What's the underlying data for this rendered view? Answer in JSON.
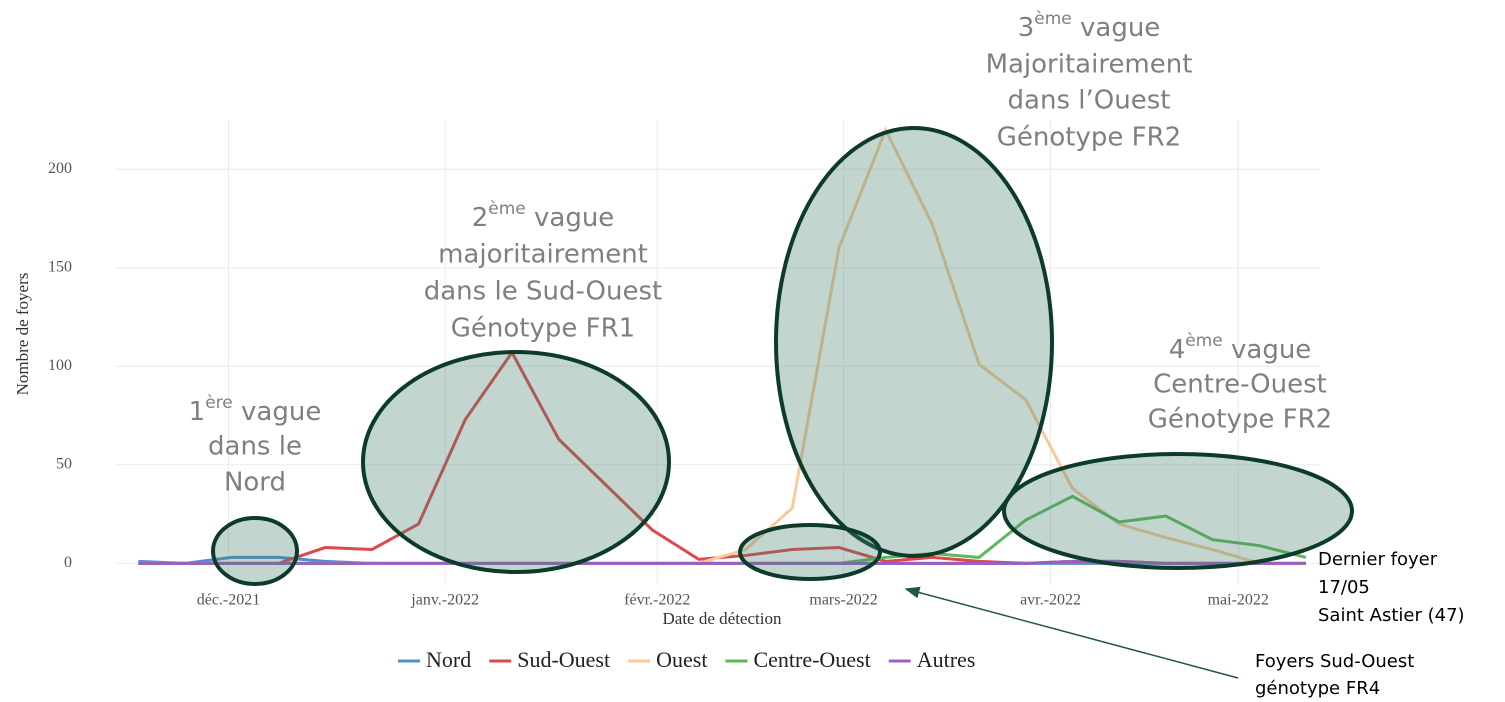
{
  "chart_data": {
    "type": "line",
    "xlabel": "Date de détection",
    "ylabel": "Nombre de foyers",
    "categories": [
      null,
      null,
      null,
      null,
      null,
      null,
      null,
      null,
      null,
      null,
      null,
      null,
      null,
      null,
      null,
      null,
      null,
      null,
      null,
      null,
      null,
      null,
      null,
      null,
      null,
      null
    ],
    "xlim": [
      -0.5,
      25.3
    ],
    "xticks": [
      {
        "value": 1.93,
        "label": "déc.-2021"
      },
      {
        "value": 6.57,
        "label": "janv.-2022"
      },
      {
        "value": 11.11,
        "label": "févr.-2022"
      },
      {
        "value": 15.1,
        "label": "mars-2022"
      },
      {
        "value": 19.53,
        "label": "avr.-2022"
      },
      {
        "value": 23.55,
        "label": "mai-2022"
      }
    ],
    "ylim": [
      -11,
      225
    ],
    "yticks": [
      0,
      50,
      100,
      150,
      200
    ],
    "grid": true,
    "legend": "bottom",
    "series": [
      {
        "name": "Nord",
        "color": "#4f8fca",
        "values": [
          1,
          0,
          3,
          3,
          1,
          0,
          0,
          0,
          0,
          0,
          0,
          0,
          0,
          0,
          0,
          0,
          0,
          0,
          0,
          0,
          0,
          0,
          0,
          0,
          0,
          0
        ]
      },
      {
        "name": "Sud-Ouest",
        "color": "#e0474c",
        "values": [
          0,
          0,
          0,
          0,
          8,
          7,
          20,
          73,
          107,
          63,
          40,
          17,
          2,
          4,
          7,
          8,
          1,
          3,
          1,
          0,
          1,
          1,
          0,
          0,
          0,
          0
        ]
      },
      {
        "name": "Ouest",
        "color": "#f8c99b",
        "values": [
          0,
          0,
          0,
          0,
          0,
          0,
          0,
          0,
          0,
          0,
          0,
          0,
          0,
          7,
          28,
          160,
          220,
          172,
          101,
          83,
          38,
          20,
          13,
          7,
          0,
          0
        ]
      },
      {
        "name": "Centre-Ouest",
        "color": "#5cb85c",
        "values": [
          0,
          0,
          0,
          0,
          0,
          0,
          0,
          0,
          0,
          0,
          0,
          0,
          0,
          0,
          0,
          0,
          3,
          5,
          3,
          22,
          34,
          21,
          24,
          12,
          9,
          3
        ]
      },
      {
        "name": "Autres",
        "color": "#9b5fc0",
        "values": [
          0,
          0,
          0,
          0,
          0,
          0,
          0,
          0,
          0,
          0,
          0,
          0,
          0,
          0,
          0,
          0,
          0,
          0,
          0,
          0,
          1,
          1,
          0,
          0,
          0,
          0
        ]
      }
    ]
  },
  "annotations": {
    "wave1": {
      "num": "1",
      "sup": "ère",
      "word": " vague",
      "lines": [
        "dans le",
        "Nord"
      ]
    },
    "wave2": {
      "num": "2",
      "sup": "ème",
      "word": " vague",
      "lines": [
        "majoritairement",
        "dans le Sud-Ouest",
        "Génotype FR1"
      ]
    },
    "wave3": {
      "num": "3",
      "sup": "ème",
      "word": " vague",
      "lines": [
        "Majoritairement",
        "dans l’Ouest",
        "Génotype FR2"
      ]
    },
    "wave4": {
      "num": "4",
      "sup": "ème",
      "word": " vague",
      "lines": [
        "Centre-Ouest",
        "Génotype FR2"
      ]
    },
    "last": [
      "Dernier foyer",
      "17/05",
      "Saint Astier (47)"
    ],
    "fr4": [
      "Foyers Sud-Ouest",
      "génotype FR4"
    ]
  }
}
